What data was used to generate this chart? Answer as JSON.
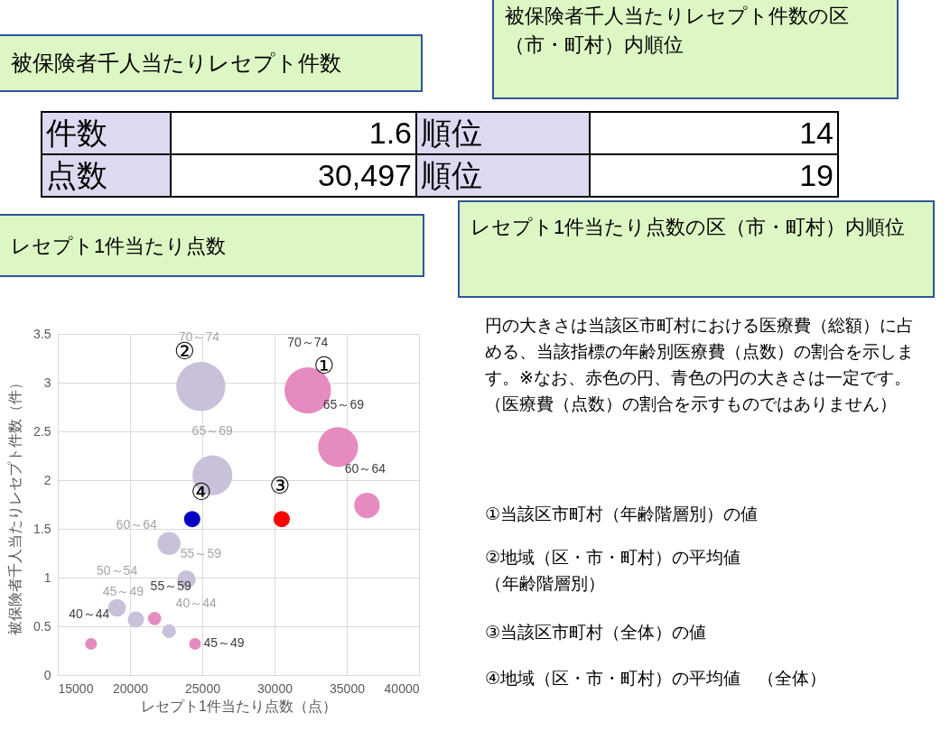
{
  "chart_data": {
    "type": "bubble",
    "xlabel": "レセプト1件当たり点数（点）",
    "ylabel": "被保険者千人当たりレセプト件数（件）",
    "xlim": [
      15000,
      40000
    ],
    "xticks": [
      15000,
      20000,
      25000,
      30000,
      35000,
      40000
    ],
    "ylim": [
      0,
      3.5
    ],
    "yticks": [
      0,
      0.5,
      1,
      1.5,
      2,
      2.5,
      3,
      3.5
    ],
    "grid": true,
    "series": [
      {
        "name": "②",
        "color": "#c9c1d9",
        "x": [
          19100,
          20400,
          22700,
          23900,
          22700,
          25700,
          24900
        ],
        "values": [
          0.69,
          0.57,
          0.45,
          0.98,
          1.35,
          2.05,
          2.96
        ],
        "sizes": [
          0.13,
          0.11,
          0.08,
          0.14,
          0.22,
          0.66,
          1
        ],
        "value_labels": [
          "50～54",
          "45～49",
          "40～44",
          "55～59",
          "60～64",
          "65～69",
          "70～74"
        ]
      },
      {
        "name": "①",
        "color": "#e68bbf",
        "x": [
          17300,
          21700,
          24500,
          36400,
          34400,
          32300
        ],
        "values": [
          0.32,
          0.58,
          0.32,
          1.74,
          2.34,
          2.92
        ],
        "sizes": [
          0.057,
          0.074,
          0.057,
          0.27,
          0.66,
          0.89
        ],
        "value_labels": [
          "40～44",
          "55～59",
          "45～49",
          "60～64",
          "65～69",
          "70～74"
        ]
      },
      {
        "name": "③",
        "color": "#ff0000",
        "x": [
          30497
        ],
        "values": [
          1.6
        ],
        "sizes": [
          0.11
        ]
      },
      {
        "name": "④",
        "color": "#0000c0",
        "x": [
          24300
        ],
        "values": [
          1.6
        ],
        "sizes": [
          0.11
        ]
      }
    ],
    "annotations": [
      "被保険者千人当たりレセプト件数の区（市・町村）内順位",
      "被保険者千人当たりレセプト件数",
      "件数",
      "1.6",
      "順位",
      "14",
      "点数",
      "30,497",
      "順位",
      "19",
      "レセプト1件当たり点数",
      "レセプト1件当たり点数の区（市・町村）内順位",
      "円の大きさは当該区市町村における医療費（総額）に占める、当該指標の年齢別医療費（点数）の割合を示します。※なお、赤色の円、青色の円の大きさは一定です。（医療費（点数）の割合を示すものではありません）",
      "①当該区市町村（年齢階層別）の値",
      "②地域（区・市・町村）の平均値（年齢階層別）",
      "③当該区市町村（全体）の値",
      "④地域（区・市・町村）の平均値　（全体）"
    ]
  }
}
